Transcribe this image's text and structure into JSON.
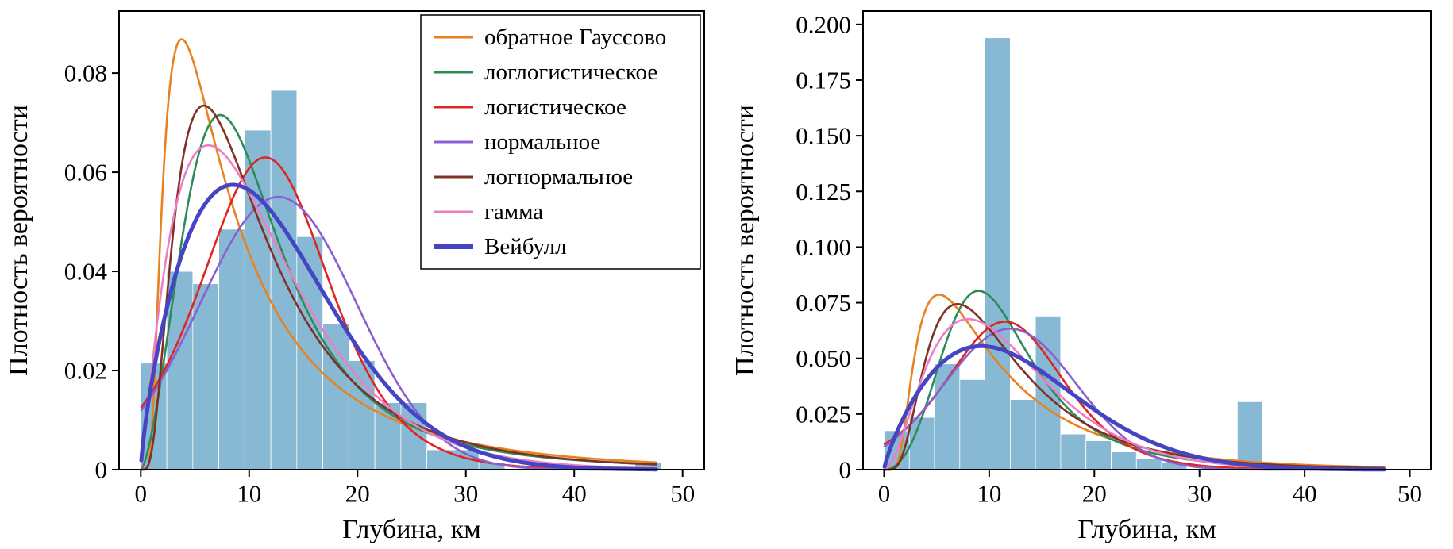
{
  "figure": {
    "background": "#ffffff"
  },
  "chart_data": [
    {
      "type": "bar",
      "subtype": "histogram-with-fitted-pdf-curves",
      "xlabel": "Глубина, км",
      "ylabel": "Плотность вероятности",
      "xlim": [
        -2,
        52
      ],
      "ylim": [
        0,
        0.0925
      ],
      "xticks": [
        0,
        10,
        20,
        30,
        40,
        50
      ],
      "xtick_labels": [
        "0",
        "10",
        "20",
        "30",
        "40",
        "50"
      ],
      "yticks": [
        0,
        0.02,
        0.04,
        0.06,
        0.08
      ],
      "ytick_labels": [
        "0",
        "0.02",
        "0.04",
        "0.06",
        "0.08"
      ],
      "grid": false,
      "legend_position": "top-right",
      "hist": {
        "color": "#87b9d5",
        "start": 0,
        "bin_width": 2.4,
        "heights": [
          0.0215,
          0.04,
          0.0375,
          0.0485,
          0.0685,
          0.0765,
          0.047,
          0.0295,
          0.022,
          0.0135,
          0.0135,
          0.004,
          0.004,
          0.0015,
          0,
          0,
          0,
          0,
          0,
          0.0015
        ]
      },
      "curve_range": [
        0.05,
        47.6
      ],
      "series": [
        {
          "label": "обратное Гауссово",
          "dist": "invgauss",
          "params": [
            12.3,
            12.5
          ],
          "color": "#e8821e",
          "width": 2.6,
          "peak_x": 3.8,
          "peak_y": 0.087
        },
        {
          "label": "логлогистическое",
          "dist": "loglogistic",
          "params": [
            10.3,
            2.5
          ],
          "color": "#2e8b57",
          "width": 2.6,
          "peak_x": 7.3,
          "peak_y": 0.071
        },
        {
          "label": "логистическое",
          "dist": "logistic",
          "params": [
            11.5,
            3.97
          ],
          "color": "#e02421",
          "width": 2.6,
          "peak_x": 11.5,
          "peak_y": 0.063
        },
        {
          "label": "нормальное",
          "dist": "normal",
          "params": [
            12.7,
            7.25
          ],
          "color": "#8a5fcf",
          "width": 2.6,
          "peak_x": 12.7,
          "peak_y": 0.055
        },
        {
          "label": "логнормальное",
          "dist": "lognormal",
          "params": [
            2.28,
            0.72
          ],
          "color": "#7f3126",
          "width": 2.6,
          "peak_x": 5.8,
          "peak_y": 0.074
        },
        {
          "label": "гамма",
          "dist": "gamma",
          "params": [
            2.2,
            5.2
          ],
          "color": "#ec7fc4",
          "width": 2.6,
          "peak_x": 6.2,
          "peak_y": 0.064
        },
        {
          "label": "Вейбулл",
          "dist": "weibull",
          "params": [
            1.75,
            13.8
          ],
          "color": "#4545c4",
          "width": 5,
          "peak_x": 8.5,
          "peak_y": 0.058
        }
      ],
      "legend": true
    },
    {
      "type": "bar",
      "subtype": "histogram-with-fitted-pdf-curves",
      "xlabel": "Глубина, км",
      "ylabel": "Плотность вероятности",
      "xlim": [
        -2,
        52
      ],
      "ylim": [
        0,
        0.206
      ],
      "xticks": [
        0,
        10,
        20,
        30,
        40,
        50
      ],
      "xtick_labels": [
        "0",
        "10",
        "20",
        "30",
        "40",
        "50"
      ],
      "yticks": [
        0,
        0.025,
        0.05,
        0.075,
        0.1,
        0.125,
        0.15,
        0.175,
        0.2
      ],
      "ytick_labels": [
        "0",
        "0.025",
        "0.050",
        "0.075",
        "0.100",
        "0.125",
        "0.150",
        "0.175",
        "0.200"
      ],
      "grid": false,
      "legend_position": "none",
      "hist": {
        "color": "#87b9d5",
        "start": 0,
        "bin_width": 2.4,
        "heights": [
          0.0175,
          0.0235,
          0.0475,
          0.0405,
          0.194,
          0.0315,
          0.069,
          0.016,
          0.013,
          0.008,
          0.005,
          0.003,
          0,
          0,
          0.0305,
          0,
          0,
          0,
          0,
          0
        ]
      },
      "curve_range": [
        0.05,
        47.6
      ],
      "series": [
        {
          "label": "обратное Гауссово",
          "dist": "invgauss",
          "params": [
            12.5,
            19
          ],
          "color": "#e8821e",
          "width": 2.6,
          "peak_x": 5.2,
          "peak_y": 0.077
        },
        {
          "label": "логлогистическое",
          "dist": "loglogistic",
          "params": [
            11,
            3.2
          ],
          "color": "#2e8b57",
          "width": 2.6,
          "peak_x": 9.0,
          "peak_y": 0.081
        },
        {
          "label": "логистическое",
          "dist": "logistic",
          "params": [
            11.5,
            3.76
          ],
          "color": "#e02421",
          "width": 2.6,
          "peak_x": 11.5,
          "peak_y": 0.066
        },
        {
          "label": "нормальное",
          "dist": "normal",
          "params": [
            12,
            6.3
          ],
          "color": "#8a5fcf",
          "width": 2.6,
          "peak_x": 12,
          "peak_y": 0.063
        },
        {
          "label": "логнормальное",
          "dist": "lognormal",
          "params": [
            2.34,
            0.63
          ],
          "color": "#7f3126",
          "width": 2.6,
          "peak_x": 7.0,
          "peak_y": 0.074
        },
        {
          "label": "гамма",
          "dist": "gamma",
          "params": [
            3.0,
            4.0
          ],
          "color": "#ec7fc4",
          "width": 2.6,
          "peak_x": 8.0,
          "peak_y": 0.068
        },
        {
          "label": "Вейбулл",
          "dist": "weibull",
          "params": [
            1.8,
            14.5
          ],
          "color": "#4545c4",
          "width": 5,
          "peak_x": 9.2,
          "peak_y": 0.056
        }
      ],
      "legend": false
    }
  ]
}
